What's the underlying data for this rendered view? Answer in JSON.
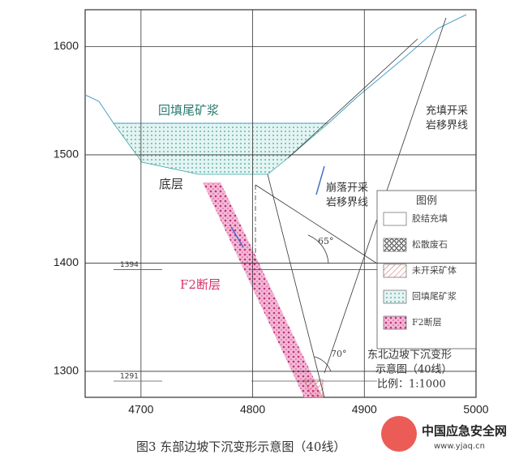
{
  "axes": {
    "xlim": [
      4650,
      5000
    ],
    "ylim": [
      1276,
      1634
    ],
    "xticks": [
      4700,
      4800,
      4900,
      5000
    ],
    "yticks": [
      1300,
      1400,
      1500,
      1600
    ]
  },
  "levels": [
    {
      "value": 1394,
      "label": "1394"
    },
    {
      "value": 1291,
      "label": "1291"
    }
  ],
  "labels": {
    "tailings": "回填尾矿浆",
    "bottom": "底层",
    "fault": "F2断层",
    "cave_boundary": [
      "崩落开采",
      "岩移界线"
    ],
    "fill_boundary": [
      "充填开采",
      "岩移界线"
    ],
    "angle1": "65°",
    "angle2": "70°"
  },
  "legend": {
    "title": "图例",
    "items": [
      "胶结充填",
      "松散废石",
      "未开采矿体",
      "回填尾矿浆",
      "F2断层"
    ]
  },
  "info": [
    "东北边坡下沉变形",
    "示意图（40线）",
    "比例：1:1000"
  ],
  "caption": "图3 东部边坡下沉变形示意图（40线）",
  "watermark": {
    "name": "中国应急安全网",
    "url": "www.yjaq.cn"
  }
}
